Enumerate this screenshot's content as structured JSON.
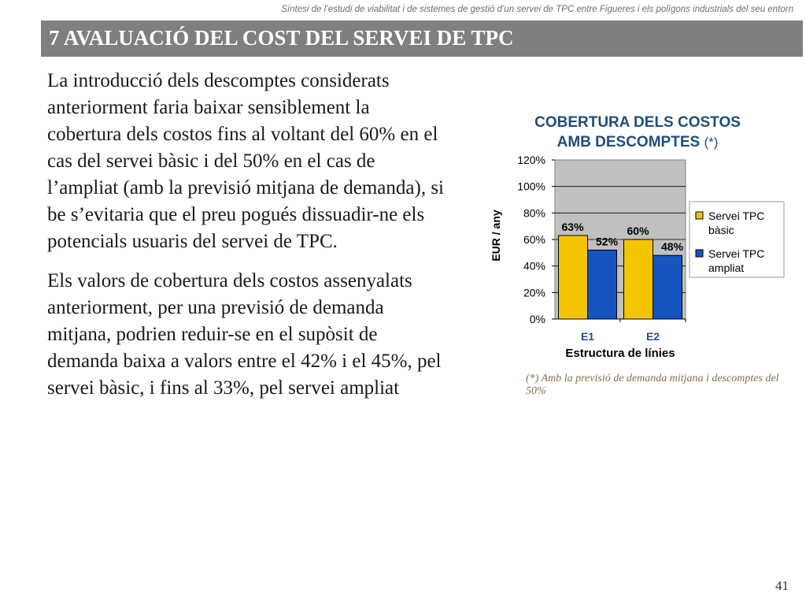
{
  "header": {
    "note": "Síntesi de l’estudi de viabilitat i de sistemes de gestió d’un servei de TPC entre Figueres i els polígons industrials del seu entorn"
  },
  "title": "7 AVALUACIÓ DEL COST DEL SERVEI DE TPC",
  "paragraphs": [
    "La introducció dels descomptes considerats anteriorment faria baixar sensiblement la cobertura dels costos fins al voltant del 60% en el cas del servei bàsic i del 50% en el cas de l’ampliat (amb la previsió mitjana de demanda), si be s’evitaria que el preu pogués dissuadir-ne els potencials usuaris del servei de TPC.",
    "Els valors de cobertura dels costos assenyalats anteriorment, per una previsió de demanda mitjana, podrien reduir-se en el supòsit de demanda baixa a valors entre el 42% i el 45%, pel servei bàsic, i fins al 33%, pel servei ampliat"
  ],
  "chart_data": {
    "type": "bar",
    "title": "COBERTURA DELS COSTOS",
    "subtitle": "AMB DESCOMPTES",
    "title_note": "(*)",
    "categories": [
      "E1",
      "E2"
    ],
    "series": [
      {
        "name": "Servei TPC bàsic",
        "values": [
          63,
          60
        ],
        "labels": [
          "63%",
          "60%"
        ],
        "color": "#f5c400"
      },
      {
        "name": "Servei TPC ampliat",
        "values": [
          52,
          48
        ],
        "labels": [
          "52%",
          "48%"
        ],
        "color": "#1455c0"
      }
    ],
    "ylabel": "EUR / any",
    "xlabel": "Estructura de línies",
    "ylim": [
      0,
      120
    ],
    "yticks": [
      0,
      20,
      40,
      60,
      80,
      100,
      120
    ],
    "ytick_labels": [
      "0%",
      "20%",
      "40%",
      "60%",
      "80%",
      "100%",
      "120%"
    ],
    "grid": true,
    "legend_position": "right",
    "plot_background": "#c0c0c0"
  },
  "footnote": "(*) Amb la previsió de demanda mitjana i descomptes del 50%",
  "page_number": "41"
}
